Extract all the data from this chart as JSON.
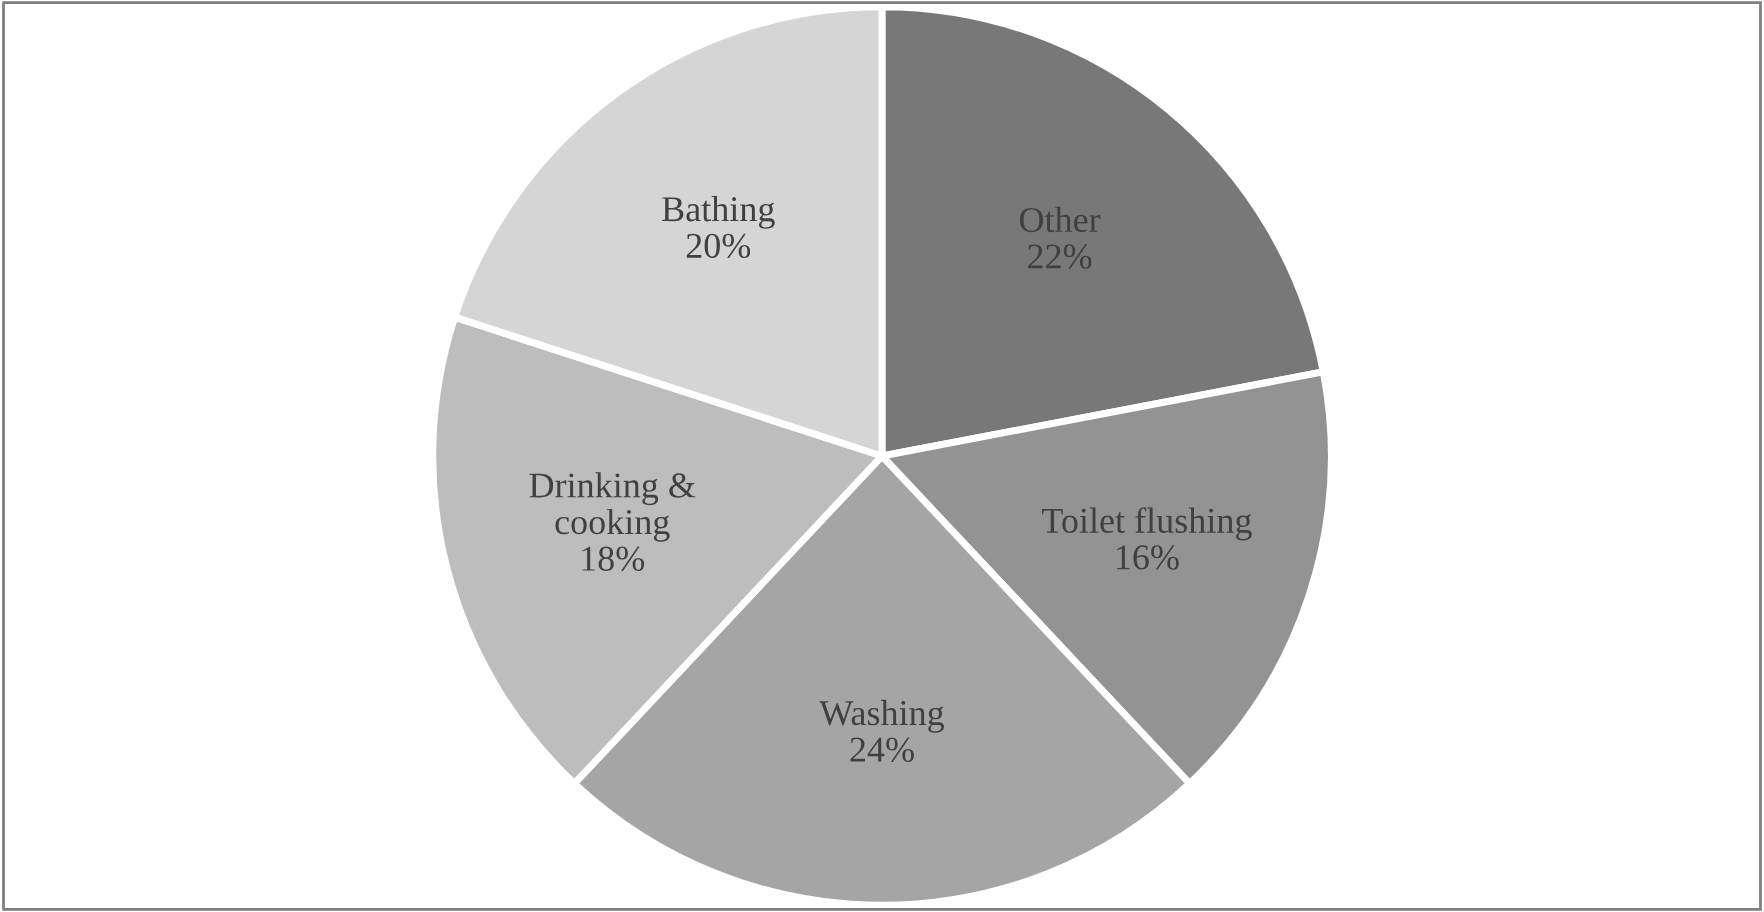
{
  "chart_data": {
    "type": "pie",
    "categories": [
      "Other",
      "Toilet flushing",
      "Washing",
      "Drinking &\ncooking",
      "Bathing"
    ],
    "values": [
      22,
      16,
      24,
      18,
      20
    ],
    "value_labels": [
      "22%",
      "16%",
      "24%",
      "18%",
      "20%"
    ],
    "colors": [
      "#787878",
      "#939393",
      "#a5a5a5",
      "#bdbdbd",
      "#d5d5d5"
    ],
    "legend": false
  }
}
